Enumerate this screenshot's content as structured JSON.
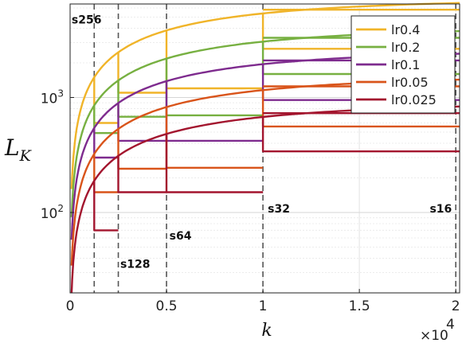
{
  "chart_data": {
    "type": "line",
    "xlabel": "k",
    "ylabel": "L_K",
    "x_multiplier_label": "×10",
    "x_multiplier_exp": "4",
    "xlim": [
      0,
      20200
    ],
    "ylim": [
      20,
      6500
    ],
    "yscale": "log",
    "grid": true,
    "legend_position": "top-right",
    "x_ticks": [
      {
        "value": 0,
        "label": "0"
      },
      {
        "value": 5000,
        "label": "0.5"
      },
      {
        "value": 10000,
        "label": "1"
      },
      {
        "value": 15000,
        "label": "1.5"
      },
      {
        "value": 20000,
        "label": "2"
      }
    ],
    "y_ticks": [
      {
        "value": 100,
        "base": "10",
        "exp": "2"
      },
      {
        "value": 1000,
        "base": "10",
        "exp": "3"
      }
    ],
    "vlines": [
      1250,
      2500,
      5000,
      10000,
      20000
    ],
    "annotations": [
      {
        "text": "s256",
        "x": 80,
        "y": 4400
      },
      {
        "text": "s128",
        "x": 2600,
        "y": 33
      },
      {
        "text": "s64",
        "x": 5150,
        "y": 58
      },
      {
        "text": "s32",
        "x": 10250,
        "y": 100
      },
      {
        "text": "s16",
        "x": 18650,
        "y": 100
      }
    ],
    "series": [
      {
        "name": "lr0.4",
        "color": "#f0b429",
        "final": 5800,
        "plateaus": [
          {
            "start": 1250,
            "value": 600
          },
          {
            "start": 2500,
            "value": 1100
          },
          {
            "start": 5000,
            "value": 1200
          },
          {
            "start": 10000,
            "value": 2650
          }
        ]
      },
      {
        "name": "lr0.2",
        "color": "#77b041",
        "final": 3300,
        "plateaus": [
          {
            "start": 1250,
            "value": 490
          },
          {
            "start": 2500,
            "value": 680
          },
          {
            "start": 5000,
            "value": 700
          },
          {
            "start": 10000,
            "value": 1600
          }
        ]
      },
      {
        "name": "lr0.1",
        "color": "#7e2b8e",
        "final": 2100,
        "plateaus": [
          {
            "start": 1250,
            "value": 300
          },
          {
            "start": 2500,
            "value": 420
          },
          {
            "start": 5000,
            "value": 420
          },
          {
            "start": 10000,
            "value": 950
          }
        ]
      },
      {
        "name": "lr0.05",
        "color": "#d9541a",
        "final": 1250,
        "plateaus": [
          {
            "start": 1250,
            "value": 150
          },
          {
            "start": 2500,
            "value": 240
          },
          {
            "start": 5000,
            "value": 245
          },
          {
            "start": 10000,
            "value": 560
          }
        ]
      },
      {
        "name": "lr0.025",
        "color": "#a3152e",
        "final": 730,
        "plateaus": [
          {
            "start": 1250,
            "value": 70
          },
          {
            "start": 2500,
            "value": 150
          },
          {
            "start": 5000,
            "value": 150
          },
          {
            "start": 10000,
            "value": 340
          }
        ]
      }
    ]
  }
}
